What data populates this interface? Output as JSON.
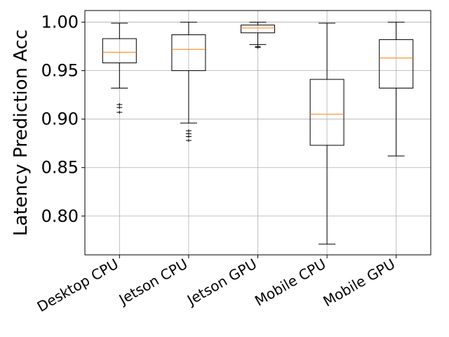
{
  "chart_data": {
    "type": "box",
    "title": "",
    "xlabel": "",
    "ylabel": "Latency Prediction Acc",
    "ylim": [
      0.76,
      1.012
    ],
    "yticks": [
      "0.80",
      "0.85",
      "0.90",
      "0.95",
      "1.00"
    ],
    "grid": true,
    "categories": [
      "Desktop CPU",
      "Jetson CPU",
      "Jetson GPU",
      "Mobile CPU",
      "Mobile GPU"
    ],
    "boxes": [
      {
        "category": "Desktop CPU",
        "whisker_low": 0.932,
        "q1": 0.958,
        "median": 0.969,
        "q3": 0.983,
        "whisker_high": 0.999,
        "outliers": [
          0.915,
          0.912,
          0.907
        ]
      },
      {
        "category": "Jetson CPU",
        "whisker_low": 0.896,
        "q1": 0.95,
        "median": 0.972,
        "q3": 0.987,
        "whisker_high": 1.0,
        "outliers": [
          0.888,
          0.885,
          0.882,
          0.878
        ]
      },
      {
        "category": "Jetson GPU",
        "whisker_low": 0.977,
        "q1": 0.989,
        "median": 0.994,
        "q3": 0.997,
        "whisker_high": 1.0,
        "outliers": [
          0.975,
          0.974
        ]
      },
      {
        "category": "Mobile CPU",
        "whisker_low": 0.771,
        "q1": 0.873,
        "median": 0.905,
        "q3": 0.941,
        "whisker_high": 0.999,
        "outliers": []
      },
      {
        "category": "Mobile GPU",
        "whisker_low": 0.862,
        "q1": 0.932,
        "median": 0.963,
        "q3": 0.982,
        "whisker_high": 1.0,
        "outliers": []
      }
    ],
    "colors": {
      "box": "#000000",
      "median": "#ff7f0e",
      "grid": "#b0b0b0"
    }
  }
}
